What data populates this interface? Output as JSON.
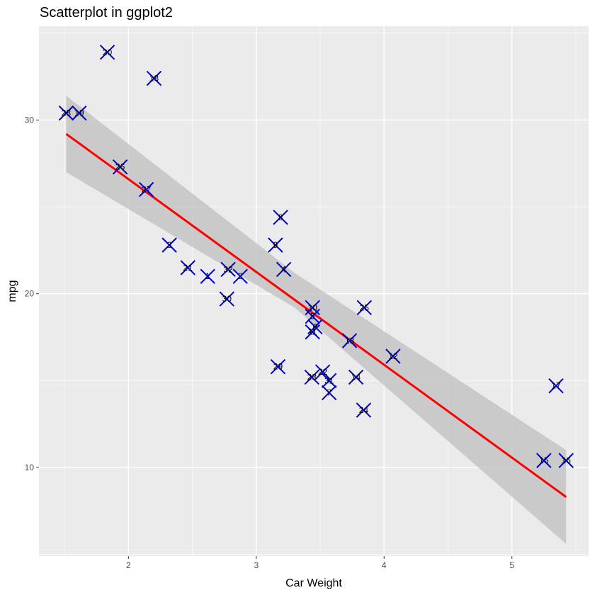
{
  "chart_data": {
    "type": "scatter",
    "title": "Scatterplot in ggplot2",
    "xlabel": "Car Weight",
    "ylabel": "mpg",
    "xlim": [
      1.3,
      5.6
    ],
    "ylim": [
      4.9,
      35.4
    ],
    "x_ticks": [
      "2",
      "3",
      "4",
      "5"
    ],
    "y_ticks": [
      "10",
      "20",
      "30"
    ],
    "grid": true,
    "colors": {
      "panel": "#ebebeb",
      "grid": "#ffffff",
      "points": "#0000cd",
      "fit_line": "#ff0000",
      "ribbon": "#bfbfbf"
    },
    "points": [
      {
        "label": "1",
        "x": 2.62,
        "y": 21.0
      },
      {
        "label": "2",
        "x": 2.875,
        "y": 21.0
      },
      {
        "label": "3",
        "x": 2.32,
        "y": 22.8
      },
      {
        "label": "4",
        "x": 3.215,
        "y": 21.4
      },
      {
        "label": "5",
        "x": 3.44,
        "y": 18.7
      },
      {
        "label": "6",
        "x": 3.46,
        "y": 18.1
      },
      {
        "label": "7",
        "x": 3.57,
        "y": 14.3
      },
      {
        "label": "8",
        "x": 3.19,
        "y": 24.4
      },
      {
        "label": "9",
        "x": 3.15,
        "y": 22.8
      },
      {
        "label": "10",
        "x": 3.44,
        "y": 19.2
      },
      {
        "label": "11",
        "x": 3.44,
        "y": 17.8
      },
      {
        "label": "12",
        "x": 4.07,
        "y": 16.4
      },
      {
        "label": "13",
        "x": 3.73,
        "y": 17.3
      },
      {
        "label": "14",
        "x": 3.78,
        "y": 15.2
      },
      {
        "label": "15",
        "x": 5.25,
        "y": 10.4
      },
      {
        "label": "16",
        "x": 5.424,
        "y": 10.4
      },
      {
        "label": "17",
        "x": 5.345,
        "y": 14.7
      },
      {
        "label": "18",
        "x": 2.2,
        "y": 32.4
      },
      {
        "label": "19",
        "x": 1.615,
        "y": 30.4
      },
      {
        "label": "20",
        "x": 1.835,
        "y": 33.9
      },
      {
        "label": "21",
        "x": 2.465,
        "y": 21.5
      },
      {
        "label": "22",
        "x": 3.52,
        "y": 15.5
      },
      {
        "label": "23",
        "x": 3.435,
        "y": 15.2
      },
      {
        "label": "24",
        "x": 3.84,
        "y": 13.3
      },
      {
        "label": "25",
        "x": 3.845,
        "y": 19.2
      },
      {
        "label": "26",
        "x": 1.935,
        "y": 27.3
      },
      {
        "label": "27",
        "x": 2.14,
        "y": 26.0
      },
      {
        "label": "28",
        "x": 1.513,
        "y": 30.4
      },
      {
        "label": "29",
        "x": 3.17,
        "y": 15.8
      },
      {
        "label": "30",
        "x": 2.77,
        "y": 19.7
      },
      {
        "label": "31",
        "x": 3.57,
        "y": 15.0
      },
      {
        "label": "32",
        "x": 2.78,
        "y": 21.4
      }
    ],
    "fit_line": {
      "x": [
        1.513,
        5.424
      ],
      "y": [
        29.2,
        8.3
      ]
    },
    "confidence_band": {
      "x": [
        1.513,
        3.3,
        5.424
      ],
      "upper": [
        31.4,
        21.2,
        11.0
      ],
      "lower": [
        27.0,
        19.2,
        5.6
      ]
    }
  }
}
